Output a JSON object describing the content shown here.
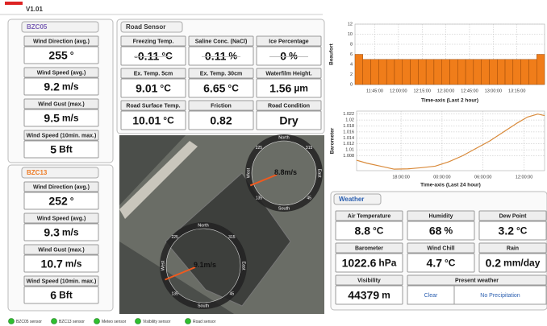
{
  "header": {
    "version": "V1.01"
  },
  "stations": [
    {
      "name": "BZC05",
      "readings": [
        {
          "label": "Wind Direction (avg.)",
          "value": 255,
          "unit": "°"
        },
        {
          "label": "Wind Speed (avg.)",
          "value": 9.2,
          "unit": "m/s"
        },
        {
          "label": "Wind Gust (max.)",
          "value": 9.5,
          "unit": "m/s"
        },
        {
          "label": "Wind Speed (10min. max.)",
          "value": 5,
          "unit": "Bft"
        }
      ]
    },
    {
      "name": "BZC13",
      "readings": [
        {
          "label": "Wind Direction (avg.)",
          "value": 252,
          "unit": "°"
        },
        {
          "label": "Wind Speed (avg.)",
          "value": 9.3,
          "unit": "m/s"
        },
        {
          "label": "Wind Gust (max.)",
          "value": 10.7,
          "unit": "m/s"
        },
        {
          "label": "Wind Speed (10min. max.)",
          "value": 6,
          "unit": "Bft"
        }
      ]
    }
  ],
  "road_sensor": {
    "title": "Road Sensor",
    "cells": [
      {
        "label": "Freezing Temp.",
        "value": -0.11,
        "unit": "°C",
        "inactive": true
      },
      {
        "label": "Saline Conc. (NaCl)",
        "value": 0.11,
        "unit": "%",
        "inactive": true
      },
      {
        "label": "Ice Percentage",
        "value": 0,
        "unit": "%",
        "inactive": true
      },
      {
        "label": "Ex. Temp. 5cm",
        "value": 9.01,
        "unit": "°C"
      },
      {
        "label": "Ex. Temp. 30cm",
        "value": 6.65,
        "unit": "°C"
      },
      {
        "label": "Waterfilm Height.",
        "value": 1.56,
        "unit": "µm"
      },
      {
        "label": "Road Surface Temp.",
        "value": 10.01,
        "unit": "°C"
      },
      {
        "label": "Friction",
        "value": 0.82
      },
      {
        "label": "Road Condition",
        "value": "Dry"
      }
    ]
  },
  "map": {
    "compasses": [
      {
        "speed": 8.8,
        "unit": "m/s",
        "directions": [
          "North",
          "East",
          "South",
          "West"
        ],
        "bearings": [
          315,
          45,
          135,
          225
        ]
      },
      {
        "speed": 9.1,
        "unit": "m/s",
        "directions": [
          "North",
          "East",
          "South",
          "West"
        ],
        "bearings": [
          315,
          45,
          135,
          225
        ]
      }
    ]
  },
  "chart_data": [
    {
      "type": "bar",
      "y_label": "Beaufort",
      "x_label": "Time-axis (Last 2 hour)",
      "categories": [
        null,
        null,
        "11:45:00",
        null,
        null,
        "12:00:00",
        null,
        null,
        "12:15:00",
        null,
        null,
        "12:30:00",
        null,
        null,
        "12:45:00",
        null,
        null,
        "13:00:00",
        null,
        null,
        "13:15:00",
        null,
        null,
        null
      ],
      "values": [
        6,
        5,
        5,
        5,
        5,
        5,
        5,
        5,
        5,
        5,
        5,
        5,
        5,
        5,
        5,
        5,
        5,
        5,
        5,
        5,
        5,
        5,
        5,
        6
      ],
      "color": "#f07d1a",
      "ylim": [
        0,
        12
      ],
      "yticks": [
        0,
        2,
        4,
        6,
        8,
        10,
        12
      ],
      "grid": true
    },
    {
      "type": "line",
      "y_label": "Barometer",
      "x_label": "Time-axis (Last 24 hour)",
      "x": [
        11.5,
        13,
        15,
        17,
        19,
        21,
        23,
        25,
        27,
        29,
        31,
        33,
        35,
        36.5,
        38,
        39
      ],
      "values": [
        1.0065,
        1.0055,
        1.0045,
        1.0035,
        1.0036,
        1.004,
        1.0045,
        1.006,
        1.008,
        1.0105,
        1.013,
        1.016,
        1.019,
        1.021,
        1.022,
        1.0215
      ],
      "color": "#d98a3a",
      "xlim": [
        11.5,
        39
      ],
      "ylim": [
        1.003,
        1.023
      ],
      "xticks": [
        {
          "value": 18,
          "label": "18:00:00"
        },
        {
          "value": 24,
          "label": "00:00:00"
        },
        {
          "value": 30,
          "label": "06:00:00"
        },
        {
          "value": 36,
          "label": "12:00:00"
        }
      ],
      "yticks": [
        1.008,
        1.01,
        1.012,
        1.014,
        1.016,
        1.018,
        1.02,
        1.022
      ],
      "grid": true
    }
  ],
  "weather": {
    "title": "Weather",
    "cells": [
      {
        "label": "Air Temperature",
        "value": 8.8,
        "unit": "°C"
      },
      {
        "label": "Humidity",
        "value": 68,
        "unit": "%"
      },
      {
        "label": "Dew Point",
        "value": 3.2,
        "unit": "°C"
      },
      {
        "label": "Barometer",
        "value": 1022.6,
        "unit": "hPa"
      },
      {
        "label": "Wind Chill",
        "value": 4.7,
        "unit": "°C"
      },
      {
        "label": "Rain",
        "value": 0.2,
        "unit": "mm/day"
      },
      {
        "label": "Visibility",
        "value": 44379,
        "unit": "m"
      }
    ],
    "present_weather": {
      "label": "Present weather",
      "values": [
        "Clear",
        "No Precipitation"
      ]
    }
  },
  "status_bar": [
    "BZC05 sensor",
    "BZC13 sensor",
    "Meteo sensor",
    "Visibility sensor",
    "Road sensor"
  ]
}
